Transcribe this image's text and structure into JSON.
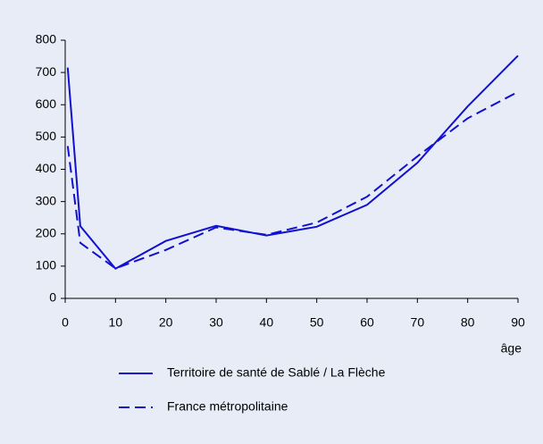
{
  "chart_data": {
    "type": "line",
    "x_label": "âge",
    "xlim": [
      0,
      90
    ],
    "xticks": [
      0,
      10,
      20,
      30,
      40,
      50,
      60,
      70,
      80,
      90
    ],
    "ylim": [
      0,
      800
    ],
    "yticks": [
      0,
      100,
      200,
      300,
      400,
      500,
      600,
      700,
      800
    ],
    "series": [
      {
        "name": "Territoire de santé de Sablé / La Flèche",
        "color": "#1010d0",
        "dash": "solid",
        "x": [
          0.5,
          3,
          10,
          20,
          30,
          40,
          50,
          60,
          70,
          80,
          90
        ],
        "values": [
          715,
          224,
          92,
          178,
          225,
          195,
          222,
          290,
          420,
          595,
          752
        ]
      },
      {
        "name": "France métropolitaine",
        "color": "#1010d0",
        "dash": "dashed",
        "x": [
          0.5,
          3,
          10,
          20,
          30,
          40,
          50,
          60,
          70,
          80,
          90
        ],
        "values": [
          472,
          172,
          93,
          150,
          220,
          197,
          235,
          315,
          440,
          558,
          640
        ]
      }
    ]
  }
}
